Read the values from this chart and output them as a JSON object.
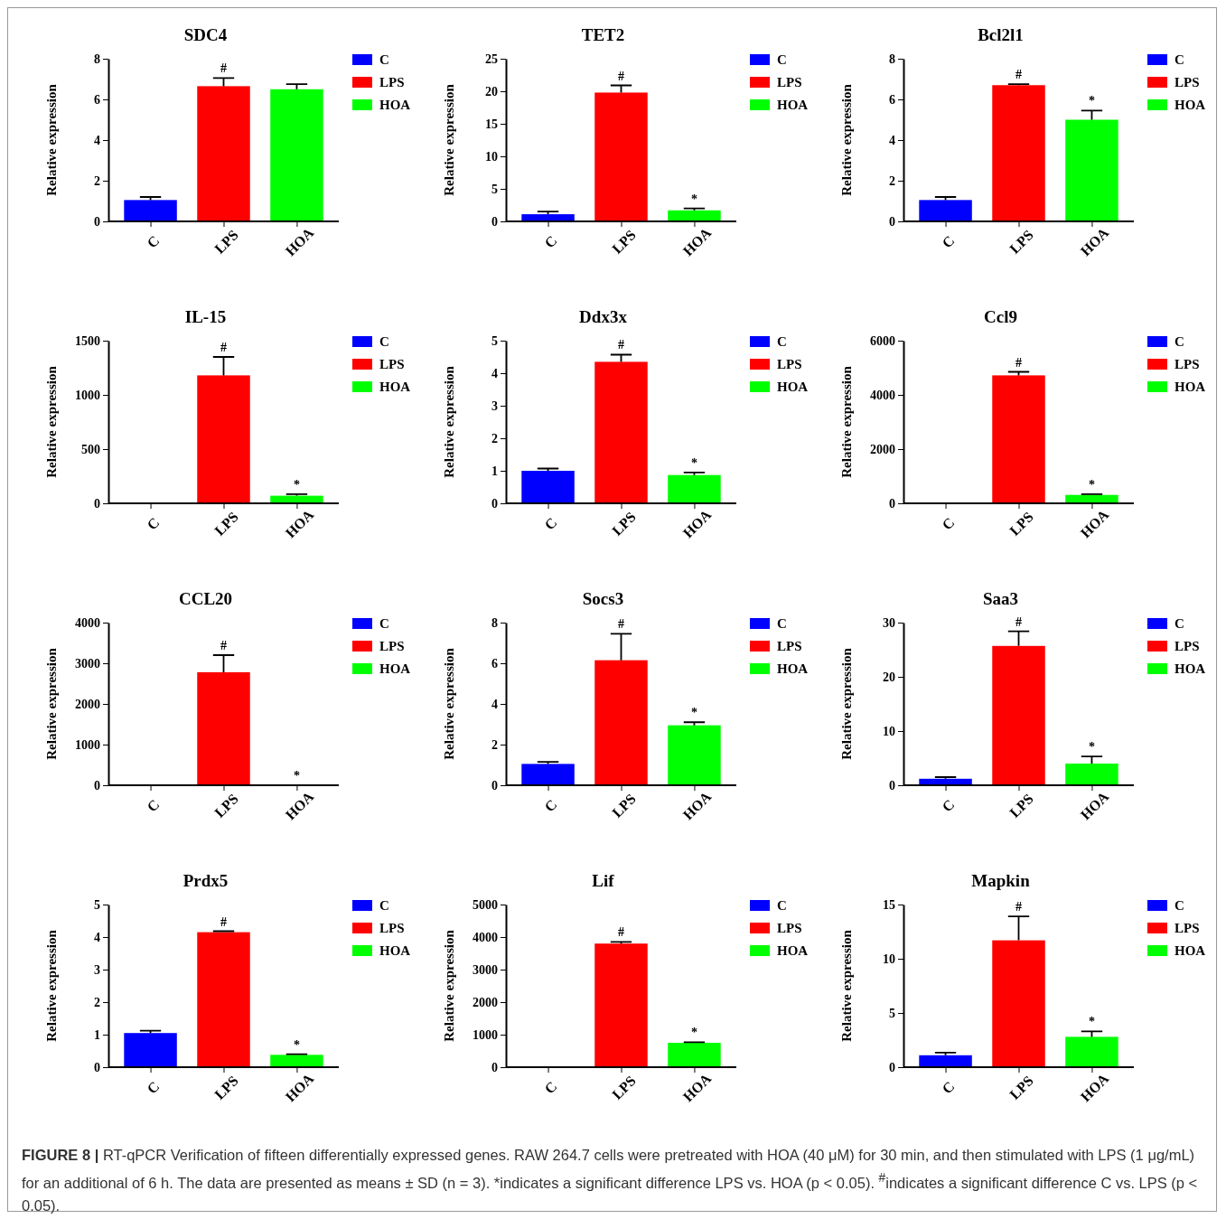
{
  "chart_data": [
    {
      "type": "bar",
      "title": "SDC4",
      "ylabel": "Relative expression",
      "categories": [
        "C",
        "LPS",
        "HOA"
      ],
      "ylim": [
        0,
        8
      ],
      "yticks": [
        0,
        2,
        4,
        6,
        8
      ],
      "legend": "right",
      "series": [
        {
          "name": "C",
          "color": "#0000ff",
          "values": [
            1.05,
            null,
            null
          ],
          "errors": [
            [
              1.05,
              1.2
            ],
            null,
            null
          ]
        },
        {
          "name": "LPS",
          "color": "#ff0000",
          "values": [
            null,
            6.65,
            null
          ],
          "errors": [
            null,
            [
              6.65,
              7.05
            ],
            null
          ]
        },
        {
          "name": "HOA",
          "color": "#00ff00",
          "values": [
            null,
            null,
            6.5
          ],
          "errors": [
            null,
            null,
            [
              6.5,
              6.75
            ]
          ]
        }
      ],
      "annotations": [
        {
          "text": "#",
          "x": "LPS",
          "y": 7.05
        }
      ]
    },
    {
      "type": "bar",
      "title": "TET2",
      "ylabel": "Relative expression",
      "categories": [
        "C",
        "LPS",
        "HOA"
      ],
      "ylim": [
        0,
        25
      ],
      "yticks": [
        0,
        5,
        10,
        15,
        20,
        25
      ],
      "legend": "right",
      "series": [
        {
          "name": "C",
          "color": "#0000ff",
          "values": [
            1.1,
            null,
            null
          ],
          "errors": [
            [
              1.1,
              1.5
            ],
            null,
            null
          ]
        },
        {
          "name": "LPS",
          "color": "#ff0000",
          "values": [
            null,
            19.8,
            null
          ],
          "errors": [
            null,
            [
              19.8,
              20.9
            ],
            null
          ]
        },
        {
          "name": "HOA",
          "color": "#00ff00",
          "values": [
            null,
            null,
            1.7
          ],
          "errors": [
            null,
            null,
            [
              1.7,
              2.0
            ]
          ]
        }
      ],
      "annotations": [
        {
          "text": "#",
          "x": "LPS",
          "y": 20.9
        },
        {
          "text": "*",
          "x": "HOA",
          "y": 2.0
        }
      ]
    },
    {
      "type": "bar",
      "title": "Bcl2l1",
      "ylabel": "Relative expression",
      "categories": [
        "C",
        "LPS",
        "HOA"
      ],
      "ylim": [
        0,
        8
      ],
      "yticks": [
        0,
        2,
        4,
        6,
        8
      ],
      "legend": "right",
      "series": [
        {
          "name": "C",
          "color": "#0000ff",
          "values": [
            1.05,
            null,
            null
          ],
          "errors": [
            [
              1.05,
              1.2
            ],
            null,
            null
          ]
        },
        {
          "name": "LPS",
          "color": "#ff0000",
          "values": [
            null,
            6.7,
            null
          ],
          "errors": [
            null,
            [
              6.7,
              6.75
            ],
            null
          ]
        },
        {
          "name": "HOA",
          "color": "#00ff00",
          "values": [
            null,
            null,
            5.0
          ],
          "errors": [
            null,
            null,
            [
              5.0,
              5.45
            ]
          ]
        }
      ],
      "annotations": [
        {
          "text": "#",
          "x": "LPS",
          "y": 6.75
        },
        {
          "text": "*",
          "x": "HOA",
          "y": 5.45
        }
      ]
    },
    {
      "type": "bar",
      "title": "IL-15",
      "ylabel": "Relative expression",
      "categories": [
        "C",
        "LPS",
        "HOA"
      ],
      "ylim": [
        0,
        1500
      ],
      "yticks": [
        0,
        500,
        1000,
        1500
      ],
      "legend": "right",
      "series": [
        {
          "name": "C",
          "color": "#0000ff",
          "values": [
            0,
            null,
            null
          ]
        },
        {
          "name": "LPS",
          "color": "#ff0000",
          "values": [
            null,
            1180,
            null
          ],
          "errors": [
            null,
            [
              1180,
              1350
            ],
            null
          ]
        },
        {
          "name": "HOA",
          "color": "#00ff00",
          "values": [
            null,
            null,
            70
          ],
          "errors": [
            null,
            null,
            [
              70,
              85
            ]
          ]
        }
      ],
      "annotations": [
        {
          "text": "#",
          "x": "LPS",
          "y": 1350
        },
        {
          "text": "*",
          "x": "HOA",
          "y": 85
        }
      ]
    },
    {
      "type": "bar",
      "title": "Ddx3x",
      "ylabel": "Relative expression",
      "categories": [
        "C",
        "LPS",
        "HOA"
      ],
      "ylim": [
        0,
        5
      ],
      "yticks": [
        0,
        1,
        2,
        3,
        4,
        5
      ],
      "legend": "right",
      "series": [
        {
          "name": "C",
          "color": "#0000ff",
          "values": [
            1.0,
            null,
            null
          ],
          "errors": [
            [
              1.0,
              1.07
            ],
            null,
            null
          ]
        },
        {
          "name": "LPS",
          "color": "#ff0000",
          "values": [
            null,
            4.35,
            null
          ],
          "errors": [
            null,
            [
              4.35,
              4.57
            ],
            null
          ]
        },
        {
          "name": "HOA",
          "color": "#00ff00",
          "values": [
            null,
            null,
            0.87
          ],
          "errors": [
            null,
            null,
            [
              0.87,
              0.95
            ]
          ]
        }
      ],
      "annotations": [
        {
          "text": "#",
          "x": "LPS",
          "y": 4.57
        },
        {
          "text": "*",
          "x": "HOA",
          "y": 0.95
        }
      ]
    },
    {
      "type": "bar",
      "title": "Ccl9",
      "ylabel": "Relative expression",
      "categories": [
        "C",
        "LPS",
        "HOA"
      ],
      "ylim": [
        0,
        6000
      ],
      "yticks": [
        0,
        2000,
        4000,
        6000
      ],
      "legend": "right",
      "series": [
        {
          "name": "C",
          "color": "#0000ff",
          "values": [
            0,
            null,
            null
          ]
        },
        {
          "name": "LPS",
          "color": "#ff0000",
          "values": [
            null,
            4720,
            null
          ],
          "errors": [
            null,
            [
              4720,
              4850
            ],
            null
          ]
        },
        {
          "name": "HOA",
          "color": "#00ff00",
          "values": [
            null,
            null,
            310
          ],
          "errors": [
            null,
            null,
            [
              310,
              340
            ]
          ]
        }
      ],
      "annotations": [
        {
          "text": "#",
          "x": "LPS",
          "y": 4850
        },
        {
          "text": "*",
          "x": "HOA",
          "y": 340
        }
      ]
    },
    {
      "type": "bar",
      "title": "CCL20",
      "ylabel": "Relative expression",
      "categories": [
        "C",
        "LPS",
        "HOA"
      ],
      "ylim": [
        0,
        4000
      ],
      "yticks": [
        0,
        1000,
        2000,
        3000,
        4000
      ],
      "legend": "right",
      "series": [
        {
          "name": "C",
          "color": "#0000ff",
          "values": [
            0,
            null,
            null
          ]
        },
        {
          "name": "LPS",
          "color": "#ff0000",
          "values": [
            null,
            2780,
            null
          ],
          "errors": [
            null,
            [
              2780,
              3200
            ],
            null
          ]
        },
        {
          "name": "HOA",
          "color": "#00ff00",
          "values": [
            null,
            null,
            0
          ]
        }
      ],
      "annotations": [
        {
          "text": "#",
          "x": "LPS",
          "y": 3200
        },
        {
          "text": "*",
          "x": "HOA",
          "y": 0
        }
      ]
    },
    {
      "type": "bar",
      "title": "Socs3",
      "ylabel": "Relative expression",
      "categories": [
        "C",
        "LPS",
        "HOA"
      ],
      "ylim": [
        0,
        8
      ],
      "yticks": [
        0,
        2,
        4,
        6,
        8
      ],
      "legend": "right",
      "series": [
        {
          "name": "C",
          "color": "#0000ff",
          "values": [
            1.05,
            null,
            null
          ],
          "errors": [
            [
              1.05,
              1.15
            ],
            null,
            null
          ]
        },
        {
          "name": "LPS",
          "color": "#ff0000",
          "values": [
            null,
            6.15,
            null
          ],
          "errors": [
            null,
            [
              6.15,
              7.45
            ],
            null
          ]
        },
        {
          "name": "HOA",
          "color": "#00ff00",
          "values": [
            null,
            null,
            2.95
          ],
          "errors": [
            null,
            null,
            [
              2.95,
              3.1
            ]
          ]
        }
      ],
      "annotations": [
        {
          "text": "#",
          "x": "LPS",
          "y": 7.45
        },
        {
          "text": "*",
          "x": "HOA",
          "y": 3.1
        }
      ]
    },
    {
      "type": "bar",
      "title": "Saa3",
      "ylabel": "Relative expression",
      "categories": [
        "C",
        "LPS",
        "HOA"
      ],
      "ylim": [
        0,
        30
      ],
      "yticks": [
        0,
        10,
        20,
        30
      ],
      "legend": "right",
      "series": [
        {
          "name": "C",
          "color": "#0000ff",
          "values": [
            1.2,
            null,
            null
          ],
          "errors": [
            [
              1.2,
              1.5
            ],
            null,
            null
          ]
        },
        {
          "name": "LPS",
          "color": "#ff0000",
          "values": [
            null,
            25.7,
            null
          ],
          "errors": [
            null,
            [
              25.7,
              28.4
            ],
            null
          ]
        },
        {
          "name": "HOA",
          "color": "#00ff00",
          "values": [
            null,
            null,
            4.0
          ],
          "errors": [
            null,
            null,
            [
              4.0,
              5.3
            ]
          ]
        }
      ],
      "annotations": [
        {
          "text": "#",
          "x": "LPS",
          "y": 28.4
        },
        {
          "text": "*",
          "x": "HOA",
          "y": 5.3
        }
      ]
    },
    {
      "type": "bar",
      "title": "Prdx5",
      "ylabel": "Relative expression",
      "categories": [
        "C",
        "LPS",
        "HOA"
      ],
      "ylim": [
        0,
        5
      ],
      "yticks": [
        0,
        1,
        2,
        3,
        4,
        5
      ],
      "legend": "right",
      "series": [
        {
          "name": "C",
          "color": "#0000ff",
          "values": [
            1.05,
            null,
            null
          ],
          "errors": [
            [
              1.05,
              1.12
            ],
            null,
            null
          ]
        },
        {
          "name": "LPS",
          "color": "#ff0000",
          "values": [
            null,
            4.15,
            null
          ],
          "errors": [
            null,
            [
              4.15,
              4.18
            ],
            null
          ]
        },
        {
          "name": "HOA",
          "color": "#00ff00",
          "values": [
            null,
            null,
            0.38
          ],
          "errors": [
            null,
            null,
            [
              0.38,
              0.4
            ]
          ]
        }
      ],
      "annotations": [
        {
          "text": "#",
          "x": "LPS",
          "y": 4.18
        },
        {
          "text": "*",
          "x": "HOA",
          "y": 0.4
        }
      ]
    },
    {
      "type": "bar",
      "title": "Lif",
      "ylabel": "Relative expression",
      "categories": [
        "C",
        "LPS",
        "HOA"
      ],
      "ylim": [
        0,
        5000
      ],
      "yticks": [
        0,
        1000,
        2000,
        3000,
        4000,
        5000
      ],
      "legend": "right",
      "series": [
        {
          "name": "C",
          "color": "#0000ff",
          "values": [
            0,
            null,
            null
          ]
        },
        {
          "name": "LPS",
          "color": "#ff0000",
          "values": [
            null,
            3800,
            null
          ],
          "errors": [
            null,
            [
              3800,
              3850
            ],
            null
          ]
        },
        {
          "name": "HOA",
          "color": "#00ff00",
          "values": [
            null,
            null,
            750
          ],
          "errors": [
            null,
            null,
            [
              750,
              770
            ]
          ]
        }
      ],
      "annotations": [
        {
          "text": "#",
          "x": "LPS",
          "y": 3850
        },
        {
          "text": "*",
          "x": "HOA",
          "y": 770
        }
      ]
    },
    {
      "type": "bar",
      "title": "Mapkin",
      "ylabel": "Relative expression",
      "categories": [
        "C",
        "LPS",
        "HOA"
      ],
      "ylim": [
        0,
        15
      ],
      "yticks": [
        0,
        5,
        10,
        15
      ],
      "legend": "right",
      "series": [
        {
          "name": "C",
          "color": "#0000ff",
          "values": [
            1.1,
            null,
            null
          ],
          "errors": [
            [
              1.1,
              1.35
            ],
            null,
            null
          ]
        },
        {
          "name": "LPS",
          "color": "#ff0000",
          "values": [
            null,
            11.7,
            null
          ],
          "errors": [
            null,
            [
              11.7,
              13.9
            ],
            null
          ]
        },
        {
          "name": "HOA",
          "color": "#00ff00",
          "values": [
            null,
            null,
            2.8
          ],
          "errors": [
            null,
            null,
            [
              2.8,
              3.3
            ]
          ]
        }
      ],
      "annotations": [
        {
          "text": "#",
          "x": "LPS",
          "y": 13.9
        },
        {
          "text": "*",
          "x": "HOA",
          "y": 3.3
        },
        "FIGURE 8 | RT-qPCR Verification of fifteen differentially expressed genes. RAW 264.7 cells were pretreated with HOA (40 μM) for 30 min, and then stimulated with LPS (1 μg/mL) for an additional of 6 h. The data are presented as means ± SD (n = 3). *indicates a significant difference LPS vs. HOA (p < 0.05). $^{#}$indicates a significant difference C vs. LPS (p < 0.05)."
      ]
    }
  ]
}
